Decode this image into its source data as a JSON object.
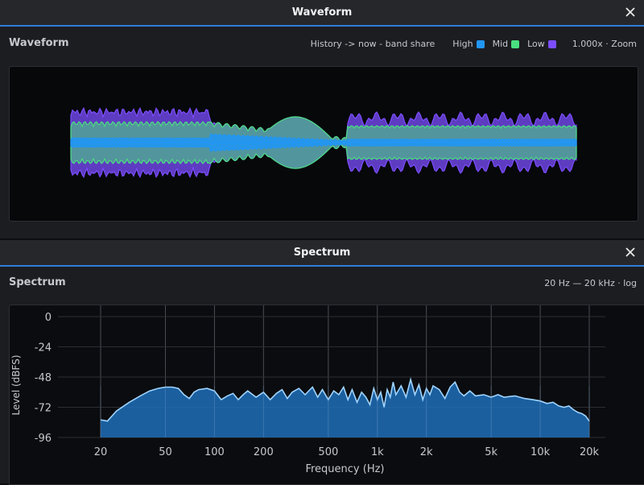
{
  "waveform": {
    "window_title": "Waveform",
    "panel_title": "Waveform",
    "caption": "History -> now - band share",
    "legend": [
      {
        "label": "High",
        "color": "#2196f3"
      },
      {
        "label": "Mid",
        "color": "#4ade80"
      },
      {
        "label": "Low",
        "color": "#7c4dff"
      }
    ],
    "zoom": "1.000x · Zoom"
  },
  "spectrum": {
    "window_title": "Spectrum",
    "panel_title": "Spectrum",
    "range_label": "20 Hz — 20 kHz · log"
  },
  "chart_data": {
    "type": "area",
    "xlabel": "Frequency (Hz)",
    "ylabel": "Level (dBFS)",
    "x_scale": "log",
    "xlim": [
      20,
      20000
    ],
    "ylim": [
      -96,
      0
    ],
    "x_ticks": [
      20,
      50,
      100,
      200,
      500,
      1000,
      2000,
      5000,
      10000,
      20000
    ],
    "x_tick_labels": [
      "20",
      "50",
      "100",
      "200",
      "500",
      "1k",
      "2k",
      "5k",
      "10k",
      "20k"
    ],
    "y_ticks": [
      0,
      -24,
      -48,
      -72,
      -96
    ],
    "y_tick_labels": [
      "0",
      "-24",
      "-48",
      "-72",
      "-96"
    ],
    "grid": true,
    "fill_color": "#1f6fb8",
    "line_color": "#9fd4ff",
    "series": [
      {
        "x": [
          20,
          22,
          25,
          30,
          35,
          40,
          45,
          50,
          55,
          60,
          65,
          70,
          75,
          80,
          90,
          100,
          110,
          120,
          130,
          140,
          150,
          160,
          180,
          200,
          220,
          240,
          260,
          280,
          300,
          330,
          360,
          400,
          430,
          460,
          500,
          540,
          580,
          620,
          660,
          700,
          750,
          800,
          850,
          900,
          950,
          1000,
          1050,
          1100,
          1150,
          1200,
          1250,
          1300,
          1400,
          1500,
          1600,
          1700,
          1800,
          1900,
          2000,
          2100,
          2200,
          2400,
          2600,
          2800,
          3000,
          3200,
          3400,
          3700,
          4000,
          4500,
          5000,
          5500,
          6000,
          7000,
          8000,
          9000,
          10000,
          11000,
          12000,
          13000,
          14000,
          15000,
          16000,
          17000,
          18000,
          19000,
          20000
        ],
        "y": [
          -82,
          -83,
          -75,
          -68,
          -63,
          -59,
          -57,
          -56,
          -56,
          -57,
          -62,
          -65,
          -60,
          -58,
          -57,
          -59,
          -66,
          -63,
          -61,
          -66,
          -62,
          -59,
          -64,
          -60,
          -66,
          -61,
          -58,
          -65,
          -60,
          -57,
          -62,
          -56,
          -64,
          -58,
          -66,
          -59,
          -62,
          -56,
          -66,
          -58,
          -68,
          -60,
          -64,
          -70,
          -57,
          -66,
          -60,
          -72,
          -58,
          -64,
          -52,
          -62,
          -55,
          -64,
          -50,
          -62,
          -54,
          -66,
          -57,
          -62,
          -55,
          -58,
          -65,
          -56,
          -52,
          -60,
          -63,
          -59,
          -63,
          -62,
          -64,
          -62,
          -64,
          -63,
          -65,
          -66,
          -67,
          -69,
          -68,
          -71,
          -72,
          -71,
          -74,
          -76,
          -77,
          -79,
          -83
        ]
      }
    ]
  }
}
